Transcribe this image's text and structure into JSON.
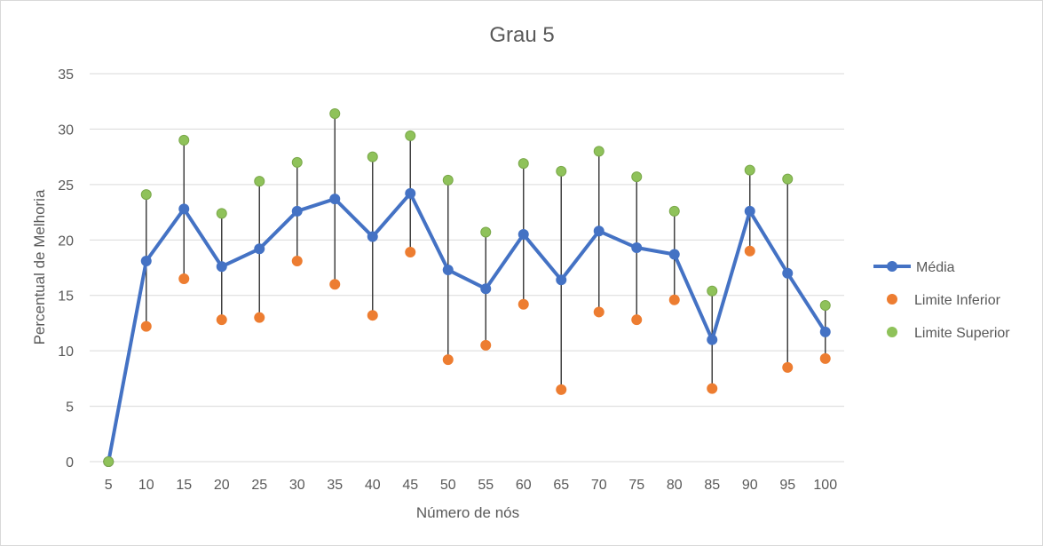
{
  "chart_data": {
    "type": "line",
    "title": "Grau 5",
    "xlabel": "Número de nós",
    "ylabel": "Percentual de Melhoria",
    "ylim": [
      0,
      35
    ],
    "yticks": [
      "0",
      "5",
      "10",
      "15",
      "20",
      "25",
      "30",
      "35"
    ],
    "grid": true,
    "legend_position": "right",
    "categories": [
      "5",
      "10",
      "15",
      "20",
      "25",
      "30",
      "35",
      "40",
      "45",
      "50",
      "55",
      "60",
      "65",
      "70",
      "75",
      "80",
      "85",
      "90",
      "95",
      "100"
    ],
    "series": [
      {
        "name": "Média",
        "style": "line-markers",
        "color": "#4472C4",
        "values": [
          0,
          18.1,
          22.8,
          17.6,
          19.2,
          22.6,
          23.7,
          20.3,
          24.2,
          17.3,
          15.6,
          20.5,
          16.4,
          20.8,
          19.3,
          18.7,
          11.0,
          22.6,
          17.0,
          11.7
        ]
      },
      {
        "name": "Limite Inferior",
        "style": "markers",
        "color": "#ED7D31",
        "values": [
          0,
          12.2,
          16.5,
          12.8,
          13.0,
          18.1,
          16.0,
          13.2,
          18.9,
          9.2,
          10.5,
          14.2,
          6.5,
          13.5,
          12.8,
          14.6,
          6.6,
          19.0,
          8.5,
          9.3
        ]
      },
      {
        "name": "Limite Superior",
        "style": "markers",
        "color": "#8FC25A",
        "values": [
          0,
          24.1,
          29.0,
          22.4,
          25.3,
          27.0,
          31.4,
          27.5,
          29.4,
          25.4,
          20.7,
          26.9,
          26.2,
          28.0,
          25.7,
          22.6,
          15.4,
          26.3,
          25.5,
          14.1
        ]
      }
    ],
    "error_bar_color": "#404040",
    "gridline_color": "#d9d9d9"
  }
}
